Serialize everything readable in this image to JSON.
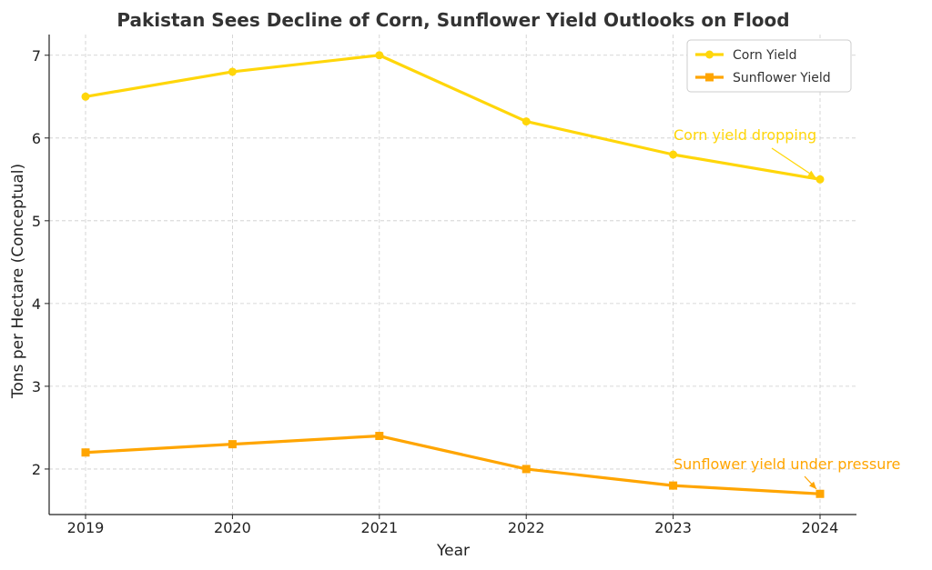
{
  "chart_data": {
    "type": "line",
    "title": "Pakistan Sees Decline of Corn, Sunflower Yield Outlooks on Flood",
    "xlabel": "Year",
    "ylabel": "Tons per Hectare (Conceptual)",
    "x": [
      "2019",
      "2020",
      "2021",
      "2022",
      "2023",
      "2024"
    ],
    "yticks": [
      "2",
      "3",
      "4",
      "5",
      "6",
      "7"
    ],
    "ylim": [
      1.45,
      7.25
    ],
    "grid": true,
    "legend_position": "top-right",
    "series": [
      {
        "name": "Corn Yield",
        "values": [
          6.5,
          6.8,
          7.0,
          6.2,
          5.8,
          5.5
        ],
        "color": "#FFD60A",
        "marker": "circle"
      },
      {
        "name": "Sunflower Yield",
        "values": [
          2.2,
          2.3,
          2.4,
          2.0,
          1.8,
          1.7
        ],
        "color": "#FFA500",
        "marker": "square"
      }
    ],
    "annotations": [
      {
        "text": "Corn yield dropping",
        "x": "2024",
        "y": 5.5,
        "color": "#FFD60A"
      },
      {
        "text": "Sunflower yield under pressure",
        "x": "2024",
        "y": 1.7,
        "color": "#FFA500"
      }
    ]
  }
}
